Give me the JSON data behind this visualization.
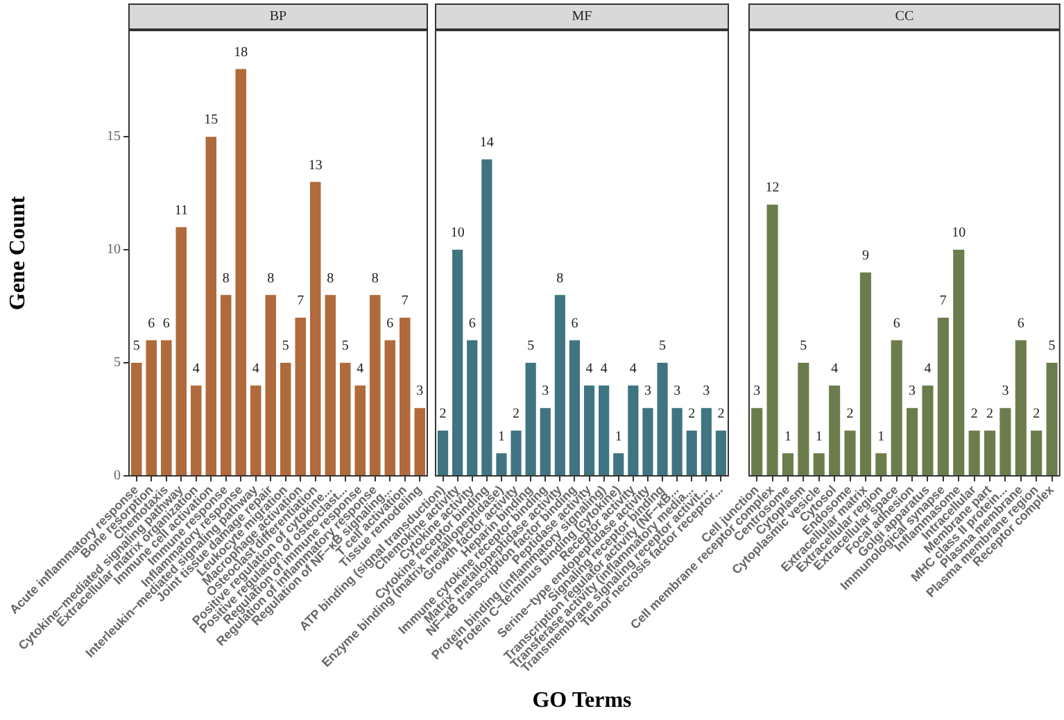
{
  "chart_data": [
    {
      "type": "bar",
      "title": "BP",
      "ylabel": "Gene Count",
      "categories": [
        "Acute inflammatory response",
        "Bone resorption",
        "Chemotaxis",
        "Cytokine−mediated signaling pathway",
        "Extracellular matrix organization",
        "Immune cell activation",
        "Immune response",
        "Inflammatory response",
        "Interleukin−mediated signaling pathway",
        "Joint tissue damage repair",
        "Leukocyte migration",
        "Macrophage activation",
        "Osteoclast differentiation",
        "Positive regulation of cytokine...",
        "Positive regulation of osteoclast...",
        "Regulation of immune response",
        "Regulation of inflammatory response",
        "Regulation of NF−κB signaling...",
        "T cell activation",
        "Tissue remodeling"
      ],
      "values": [
        5,
        6,
        6,
        11,
        4,
        15,
        8,
        18,
        4,
        8,
        5,
        7,
        13,
        8,
        5,
        4,
        8,
        6,
        7,
        3
      ],
      "color": "#b06a3b",
      "ylim": [
        0,
        19.7
      ],
      "yticks": [
        0,
        5,
        10,
        15
      ],
      "data_labels": true,
      "grid": false
    },
    {
      "type": "bar",
      "title": "MF",
      "xlabel": "GO Terms",
      "categories": [
        "ATP binding (signal transduction)",
        "Chemokine activity",
        "Cytokine activity",
        "Cytokine receptor binding",
        "Enzyme binding (matrix metallopeptidase)",
        "Growth factor activity",
        "Heparin binding",
        "Immune cytokine receptor binding",
        "Matrix metallopeptidase activity",
        "NF−κB transcription factor binding",
        "Peptidase activity",
        "Protein binding (inflammatory signaling)",
        "Protein C−terminus binding (cytokine)",
        "Receptor activity",
        "Serine−type endopeptidase activity",
        "Signaling receptor binding",
        "Transcription regulator activity (NF−κB...",
        "Transferase activity (inflammatory media...",
        "Transmembrane signaling receptor activit...",
        "Tumor necrosis factor receptor..."
      ],
      "values": [
        2,
        10,
        6,
        14,
        1,
        2,
        5,
        3,
        8,
        6,
        4,
        4,
        1,
        4,
        3,
        5,
        3,
        2,
        3,
        2
      ],
      "color": "#3f7482",
      "ylim": [
        0,
        19.7
      ],
      "yticks": [
        0,
        5,
        10,
        15
      ],
      "tick_labels": "x",
      "data_labels": true,
      "grid": false
    },
    {
      "type": "bar",
      "title": "CC",
      "categories": [
        "Cell junction",
        "Cell membrane receptor complex",
        "Centrosome",
        "Cytoplasm",
        "Cytoplasmic vesicle",
        "Cytosol",
        "Endosome",
        "Extracellular matrix",
        "Extracellular region",
        "Extracellular space",
        "Focal adhesion",
        "Golgi apparatus",
        "Immunological synapse",
        "Inflammasome",
        "Intracellular",
        "Membrane part",
        "MHC class II protein...",
        "Plasma membrane",
        "Plasma membrane region",
        "Receptor complex"
      ],
      "values": [
        3,
        12,
        1,
        5,
        1,
        4,
        2,
        9,
        1,
        6,
        3,
        4,
        7,
        10,
        2,
        2,
        3,
        6,
        2,
        5
      ],
      "color": "#6b7d4c",
      "ylim": [
        0,
        19.7
      ],
      "yticks": [
        0,
        5,
        10,
        15
      ],
      "tick_labels": "x",
      "data_labels": true,
      "grid": false
    }
  ]
}
